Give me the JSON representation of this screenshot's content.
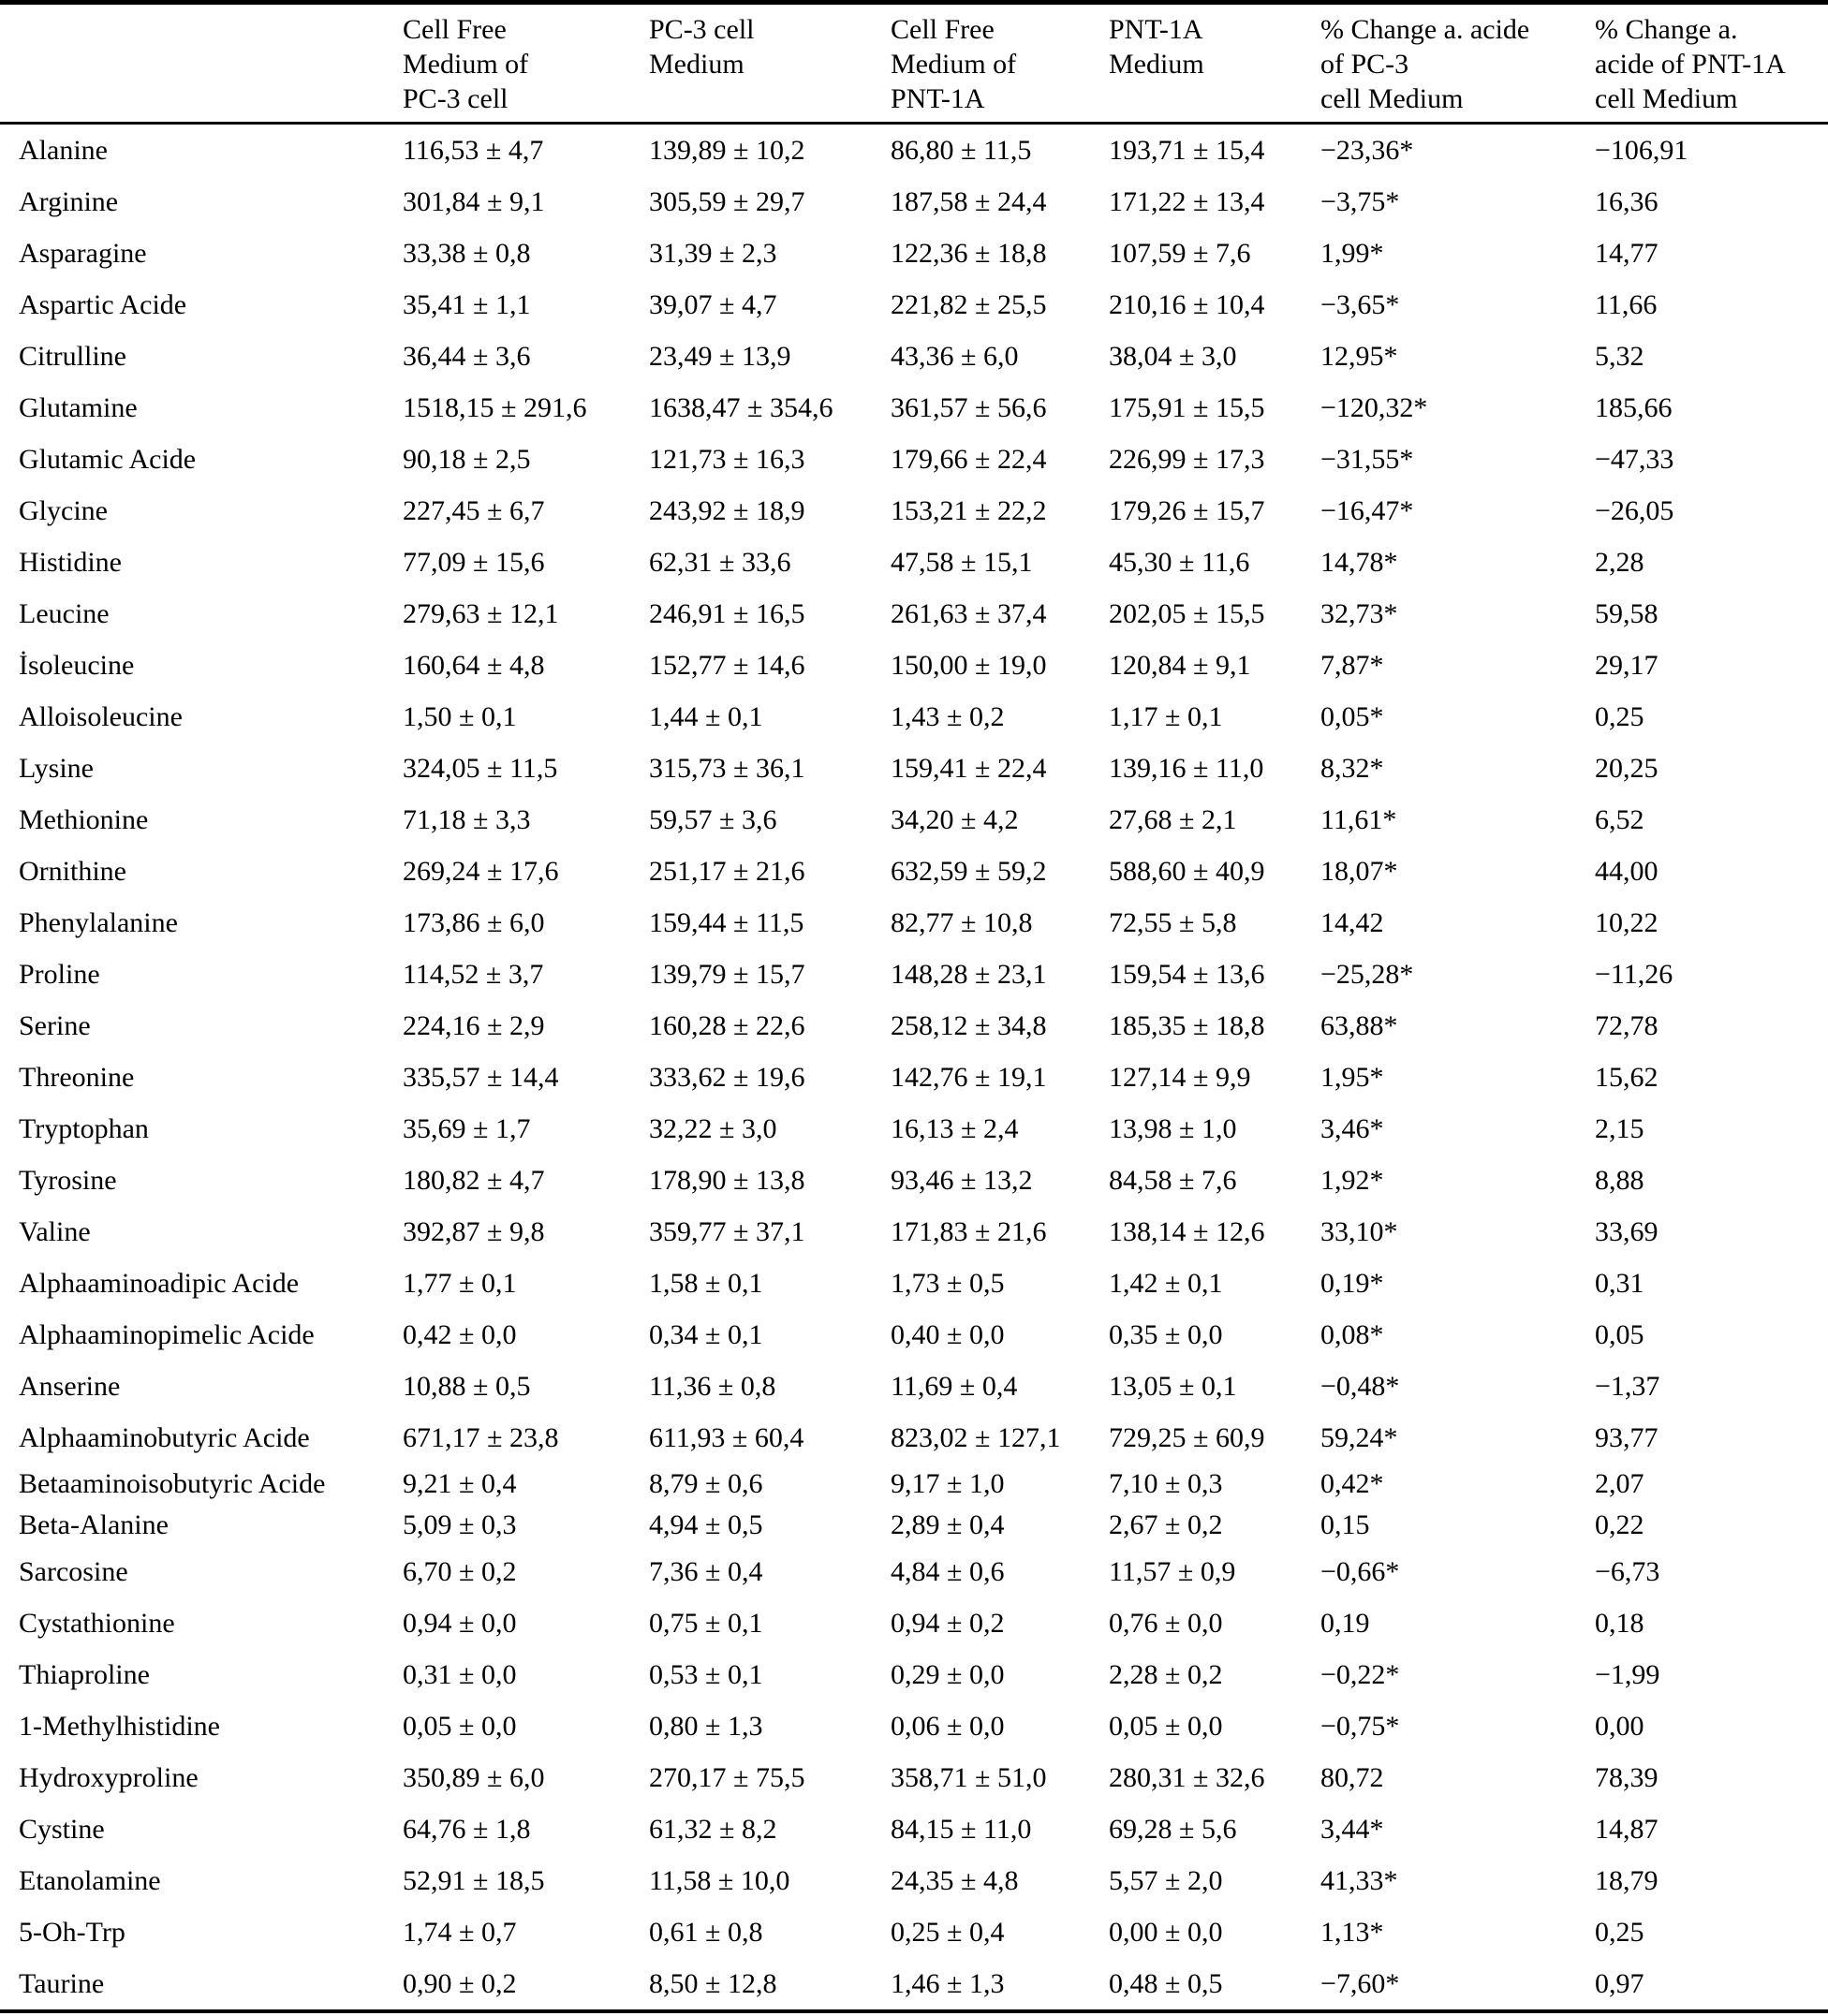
{
  "page": {
    "background": "#ffffff",
    "text_color": "#000000"
  },
  "table": {
    "corner_label": "",
    "columns": [
      {
        "lines": [
          "Cell Free",
          "Medium of",
          "PC-3 cell"
        ]
      },
      {
        "lines": [
          "PC-3 cell",
          "Medium"
        ]
      },
      {
        "lines": [
          "Cell Free",
          "Medium of",
          "PNT-1A"
        ]
      },
      {
        "lines": [
          "PNT-1A",
          "Medium"
        ]
      },
      {
        "lines": [
          "% Change a. acide",
          "of PC-3",
          "cell Medium"
        ]
      },
      {
        "lines": [
          "% Change a.",
          "acide of PNT-1A",
          "cell Medium"
        ]
      }
    ],
    "rows": [
      {
        "name": "Alanine",
        "values": [
          "116,53 ± 4,7",
          "139,89 ± 10,2",
          "86,80 ± 11,5",
          "193,71 ± 15,4",
          "−23,36*",
          "−106,91"
        ]
      },
      {
        "name": "Arginine",
        "values": [
          "301,84 ± 9,1",
          "305,59 ± 29,7",
          "187,58 ± 24,4",
          "171,22 ± 13,4",
          "−3,75*",
          "16,36"
        ]
      },
      {
        "name": "Asparagine",
        "values": [
          "33,38 ± 0,8",
          "31,39 ± 2,3",
          "122,36 ± 18,8",
          "107,59 ± 7,6",
          "1,99*",
          "14,77"
        ]
      },
      {
        "name": "Aspartic Acide",
        "values": [
          "35,41 ± 1,1",
          "39,07 ± 4,7",
          "221,82 ± 25,5",
          "210,16 ± 10,4",
          "−3,65*",
          "11,66"
        ]
      },
      {
        "name": "Citrulline",
        "values": [
          "36,44 ± 3,6",
          "23,49 ± 13,9",
          "43,36 ± 6,0",
          "38,04 ± 3,0",
          "12,95*",
          "5,32"
        ]
      },
      {
        "name": "Glutamine",
        "values": [
          "1518,15 ± 291,6",
          "1638,47 ± 354,6",
          "361,57 ± 56,6",
          "175,91 ± 15,5",
          "−120,32*",
          "185,66"
        ]
      },
      {
        "name": "Glutamic Acide",
        "values": [
          "90,18 ± 2,5",
          "121,73 ± 16,3",
          "179,66 ± 22,4",
          "226,99 ± 17,3",
          "−31,55*",
          "−47,33"
        ]
      },
      {
        "name": "Glycine",
        "values": [
          "227,45 ± 6,7",
          "243,92 ± 18,9",
          "153,21 ± 22,2",
          "179,26 ± 15,7",
          "−16,47*",
          "−26,05"
        ]
      },
      {
        "name": "Histidine",
        "values": [
          "77,09 ± 15,6",
          "62,31 ± 33,6",
          "47,58 ± 15,1",
          "45,30 ± 11,6",
          "14,78*",
          "2,28"
        ]
      },
      {
        "name": "Leucine",
        "values": [
          "279,63 ± 12,1",
          "246,91 ± 16,5",
          "261,63 ± 37,4",
          "202,05 ± 15,5",
          "32,73*",
          "59,58"
        ]
      },
      {
        "name": "İsoleucine",
        "values": [
          "160,64 ± 4,8",
          "152,77 ± 14,6",
          "150,00 ± 19,0",
          "120,84 ± 9,1",
          "7,87*",
          "29,17"
        ]
      },
      {
        "name": "Alloisoleucine",
        "values": [
          "1,50 ± 0,1",
          "1,44 ± 0,1",
          "1,43 ± 0,2",
          "1,17 ± 0,1",
          "0,05*",
          "0,25"
        ]
      },
      {
        "name": "Lysine",
        "values": [
          "324,05 ± 11,5",
          "315,73 ± 36,1",
          "159,41 ± 22,4",
          "139,16 ± 11,0",
          "8,32*",
          "20,25"
        ]
      },
      {
        "name": "Methionine",
        "values": [
          "71,18 ± 3,3",
          "59,57 ± 3,6",
          "34,20 ± 4,2",
          "27,68 ± 2,1",
          "11,61*",
          "6,52"
        ]
      },
      {
        "name": "Ornithine",
        "values": [
          "269,24 ± 17,6",
          "251,17 ± 21,6",
          "632,59 ± 59,2",
          "588,60 ± 40,9",
          "18,07*",
          "44,00"
        ]
      },
      {
        "name": "Phenylalanine",
        "values": [
          "173,86 ± 6,0",
          "159,44 ± 11,5",
          "82,77 ± 10,8",
          "72,55 ± 5,8",
          "14,42",
          "10,22"
        ]
      },
      {
        "name": "Proline",
        "values": [
          "114,52 ± 3,7",
          "139,79 ± 15,7",
          "148,28 ± 23,1",
          "159,54 ± 13,6",
          "−25,28*",
          "−11,26"
        ]
      },
      {
        "name": "Serine",
        "values": [
          "224,16 ± 2,9",
          "160,28 ± 22,6",
          "258,12 ± 34,8",
          "185,35 ± 18,8",
          "63,88*",
          "72,78"
        ]
      },
      {
        "name": "Threonine",
        "values": [
          "335,57 ± 14,4",
          "333,62 ± 19,6",
          "142,76 ± 19,1",
          "127,14 ± 9,9",
          "1,95*",
          "15,62"
        ]
      },
      {
        "name": "Tryptophan",
        "values": [
          "35,69 ± 1,7",
          "32,22 ± 3,0",
          "16,13 ± 2,4",
          "13,98 ± 1,0",
          "3,46*",
          "2,15"
        ]
      },
      {
        "name": "Tyrosine",
        "values": [
          "180,82 ± 4,7",
          "178,90 ± 13,8",
          "93,46 ± 13,2",
          "84,58 ± 7,6",
          "1,92*",
          "8,88"
        ]
      },
      {
        "name": "Valine",
        "values": [
          "392,87 ± 9,8",
          "359,77 ± 37,1",
          "171,83 ± 21,6",
          "138,14 ± 12,6",
          "33,10*",
          "33,69"
        ]
      },
      {
        "name": "Alphaaminoadipic Acide",
        "values": [
          "1,77 ± 0,1",
          "1,58 ± 0,1",
          "1,73 ± 0,5",
          "1,42 ± 0,1",
          "0,19*",
          "0,31"
        ]
      },
      {
        "name": "Alphaaminopimelic Acide",
        "values": [
          "0,42 ± 0,0",
          "0,34 ± 0,1",
          "0,40 ± 0,0",
          "0,35 ± 0,0",
          "0,08*",
          "0,05"
        ]
      },
      {
        "name": "Anserine",
        "values": [
          "10,88 ± 0,5",
          "11,36 ± 0,8",
          "11,69 ± 0,4",
          "13,05 ± 0,1",
          "−0,48*",
          "−1,37"
        ]
      },
      {
        "name": "Alphaaminobutyric Acide",
        "values": [
          "671,17 ± 23,8",
          "611,93 ± 60,4",
          "823,02 ± 127,1",
          "729,25 ± 60,9",
          "59,24*",
          "93,77"
        ]
      },
      {
        "name": "Betaaminoisobutyric Acide",
        "values": [
          "9,21 ± 0,4",
          "8,79 ± 0,6",
          "9,17 ± 1,0",
          "7,10 ± 0,3",
          "0,42*",
          "2,07"
        ]
      },
      {
        "name": "Beta-Alanine",
        "values": [
          "5,09 ± 0,3",
          "4,94 ± 0,5",
          "2,89 ± 0,4",
          "2,67 ± 0,2",
          "0,15",
          "0,22"
        ]
      },
      {
        "name": "Sarcosine",
        "values": [
          "6,70 ± 0,2",
          "7,36 ± 0,4",
          "4,84 ± 0,6",
          "11,57 ± 0,9",
          "−0,66*",
          "−6,73"
        ]
      },
      {
        "name": "Cystathionine",
        "values": [
          "0,94 ± 0,0",
          "0,75 ± 0,1",
          "0,94 ± 0,2",
          "0,76 ± 0,0",
          "0,19",
          "0,18"
        ]
      },
      {
        "name": "Thiaproline",
        "values": [
          "0,31 ± 0,0",
          "0,53 ± 0,1",
          "0,29 ± 0,0",
          "2,28 ± 0,2",
          "−0,22*",
          "−1,99"
        ]
      },
      {
        "name": "1-Methylhistidine",
        "values": [
          "0,05 ± 0,0",
          "0,80 ± 1,3",
          "0,06 ± 0,0",
          "0,05 ± 0,0",
          "−0,75*",
          "0,00"
        ]
      },
      {
        "name": "Hydroxyproline",
        "values": [
          "350,89 ± 6,0",
          "270,17 ± 75,5",
          "358,71 ± 51,0",
          "280,31 ± 32,6",
          "80,72",
          "78,39"
        ]
      },
      {
        "name": "Cystine",
        "values": [
          "64,76 ± 1,8",
          "61,32 ± 8,2",
          "84,15 ± 11,0",
          "69,28 ± 5,6",
          "3,44*",
          "14,87"
        ]
      },
      {
        "name": "Etanolamine",
        "values": [
          "52,91 ± 18,5",
          "11,58 ± 10,0",
          "24,35 ± 4,8",
          "5,57 ± 2,0",
          "41,33*",
          "18,79"
        ]
      },
      {
        "name": "5-Oh-Trp",
        "values": [
          "1,74 ± 0,7",
          "0,61 ± 0,8",
          "0,25 ± 0,4",
          "0,00 ± 0,0",
          "1,13*",
          "0,25"
        ]
      },
      {
        "name": "Taurine",
        "values": [
          "0,90 ± 0,2",
          "8,50 ± 12,8",
          "1,46 ± 1,3",
          "0,48 ± 0,5",
          "−7,60*",
          "0,97"
        ]
      }
    ]
  }
}
